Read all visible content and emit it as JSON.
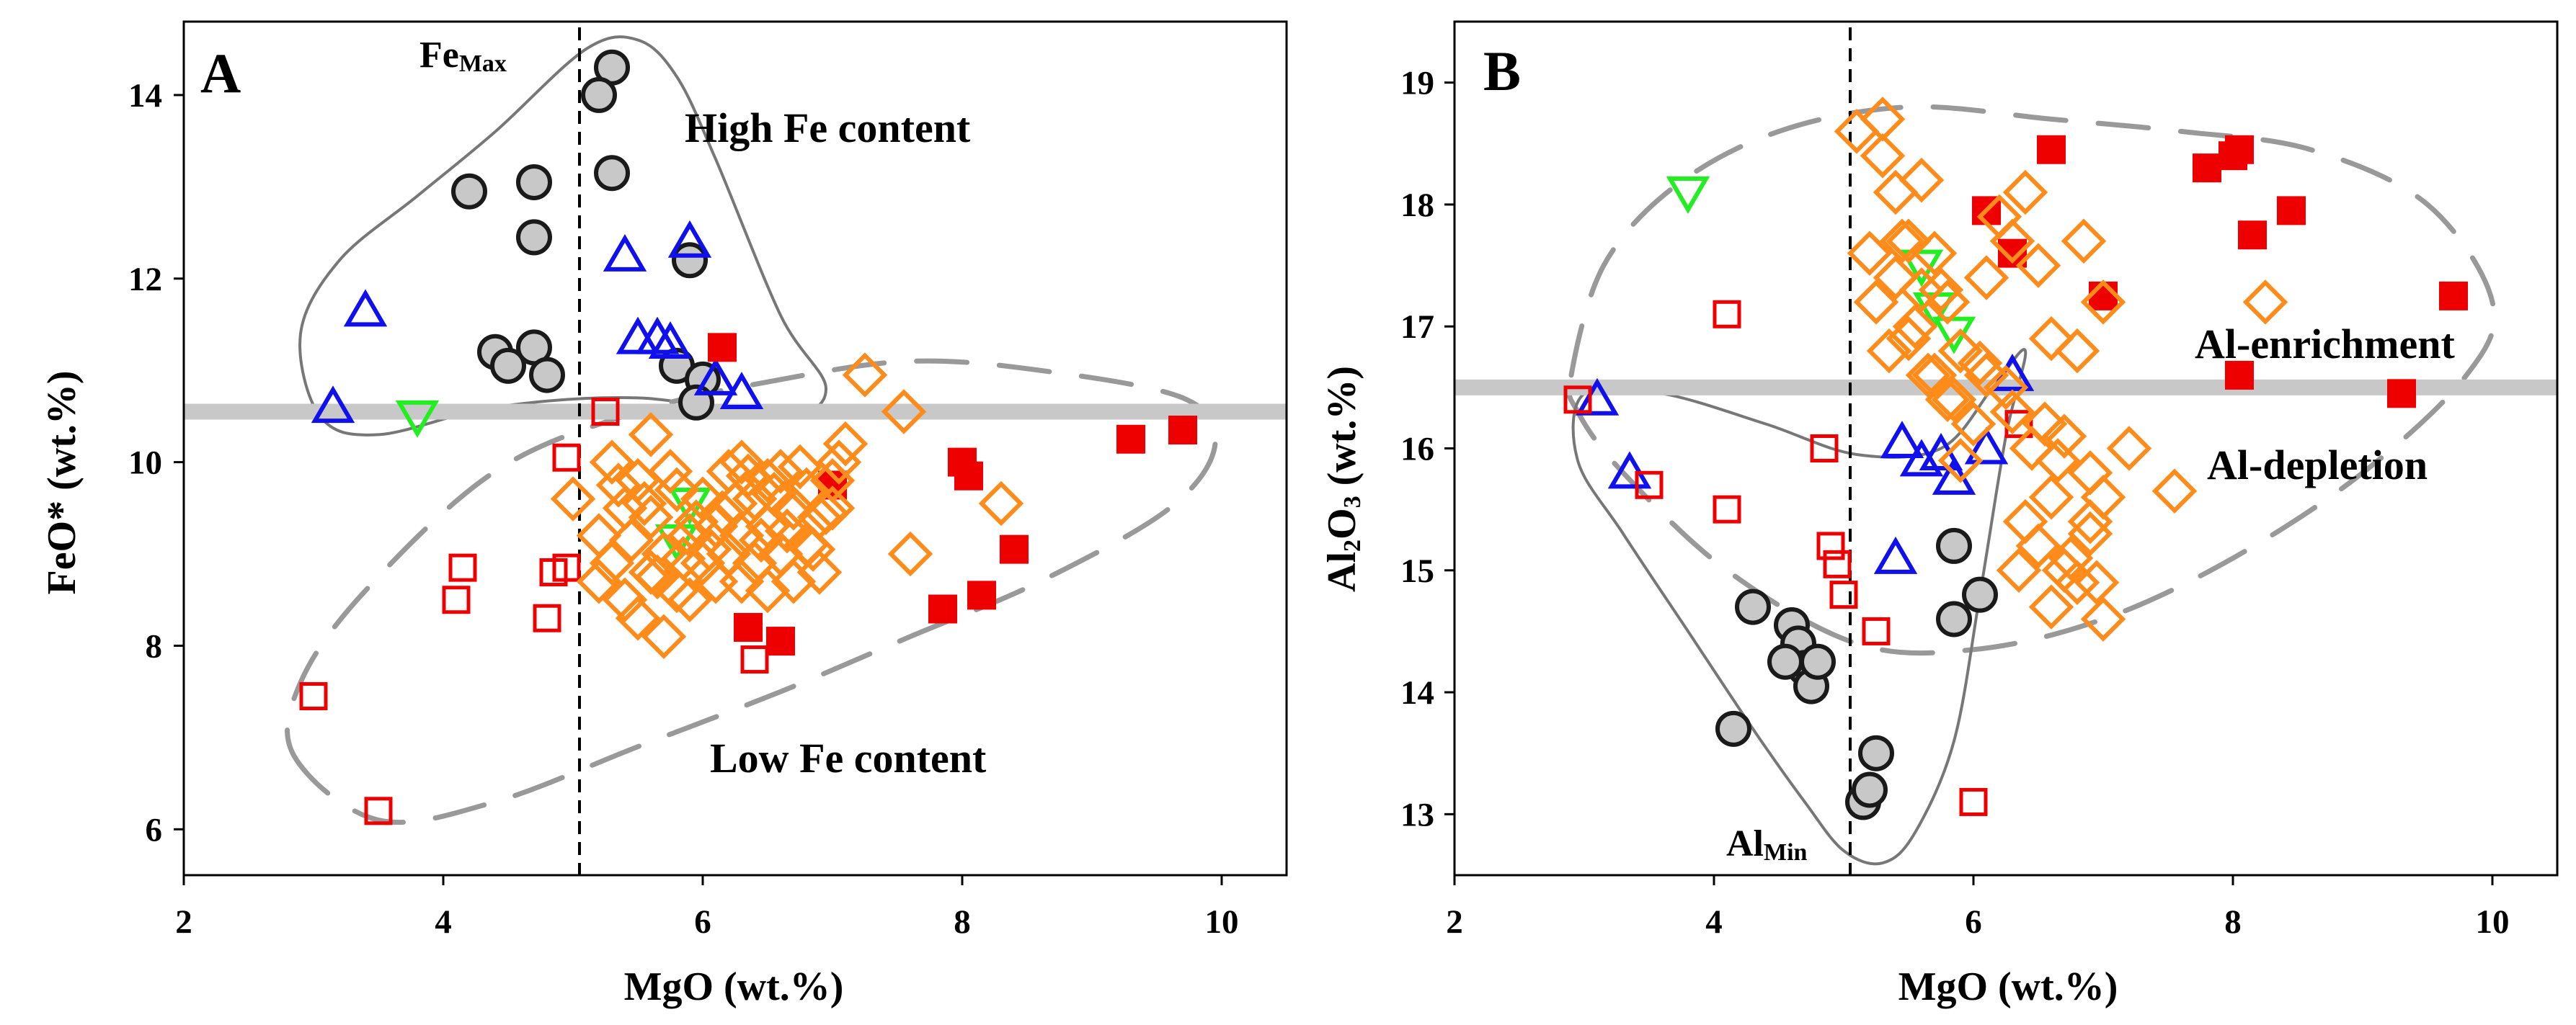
{
  "chart_data": [
    {
      "panel": "A",
      "type": "scatter",
      "xlabel": "MgO (wt.%)",
      "ylabel": "FeO* (wt.%)",
      "xlim": [
        2,
        10.5
      ],
      "ylim": [
        5.5,
        14.8
      ],
      "xticks": [
        2,
        4,
        6,
        8,
        10
      ],
      "yticks": [
        6,
        8,
        10,
        12,
        14
      ],
      "reference_x": 5.05,
      "reference_y": 10.55,
      "marker_label": {
        "main": "Fe",
        "sub": "Max"
      },
      "annotations": [
        "High Fe content",
        "Low Fe content"
      ],
      "regions": [
        {
          "name": "high-fe-solid-field",
          "style": "solid",
          "points": [
            [
              3.05,
              10.5
            ],
            [
              2.9,
              11.4
            ],
            [
              3.2,
              12.2
            ],
            [
              3.8,
              12.9
            ],
            [
              4.4,
              13.6
            ],
            [
              5.1,
              14.5
            ],
            [
              5.5,
              14.6
            ],
            [
              5.8,
              14.2
            ],
            [
              6.1,
              13.3
            ],
            [
              6.6,
              11.6
            ],
            [
              6.95,
              10.8
            ],
            [
              6.6,
              10.5
            ],
            [
              5.5,
              10.7
            ],
            [
              4.4,
              10.6
            ],
            [
              3.5,
              10.3
            ]
          ]
        },
        {
          "name": "low-fe-dashed-field",
          "style": "dashed",
          "points": [
            [
              2.85,
              6.8
            ],
            [
              3.5,
              6.1
            ],
            [
              4.4,
              6.3
            ],
            [
              5.5,
              6.9
            ],
            [
              6.6,
              7.5
            ],
            [
              7.6,
              8.1
            ],
            [
              8.6,
              8.7
            ],
            [
              9.6,
              9.5
            ],
            [
              9.95,
              10.2
            ],
            [
              9.7,
              10.7
            ],
            [
              8.6,
              11.0
            ],
            [
              7.6,
              11.1
            ],
            [
              6.6,
              10.9
            ],
            [
              5.5,
              10.55
            ],
            [
              4.4,
              9.9
            ],
            [
              3.4,
              8.6
            ],
            [
              2.9,
              7.6
            ]
          ]
        }
      ],
      "series": [
        {
          "name": "gray circles",
          "marker": "circle",
          "x": [
            4.2,
            4.7,
            4.7,
            4.4,
            4.5,
            4.7,
            4.8,
            5.3,
            5.2,
            5.3,
            5.9,
            5.8,
            6.0,
            5.95
          ],
          "y": [
            12.95,
            13.05,
            12.45,
            11.2,
            11.05,
            11.25,
            10.95,
            14.3,
            14.0,
            13.15,
            12.2,
            11.05,
            10.9,
            10.65
          ]
        },
        {
          "name": "blue triangles",
          "marker": "triangle-up",
          "x": [
            3.15,
            3.4,
            5.4,
            5.5,
            5.65,
            5.75,
            5.9,
            6.1,
            6.3
          ],
          "y": [
            10.6,
            11.65,
            12.25,
            11.35,
            11.35,
            11.3,
            12.4,
            10.9,
            10.75
          ]
        },
        {
          "name": "green inverted triangles",
          "marker": "triangle-down",
          "x": [
            3.8,
            5.8,
            5.9
          ],
          "y": [
            10.5,
            9.15,
            9.55
          ]
        },
        {
          "name": "red filled squares",
          "marker": "square-filled",
          "x": [
            6.15,
            7.0,
            8.0,
            8.05,
            7.85,
            8.15,
            8.4,
            6.35,
            6.6,
            9.3,
            9.7
          ],
          "y": [
            11.25,
            9.75,
            10.0,
            9.85,
            8.4,
            8.55,
            9.05,
            8.2,
            8.05,
            10.25,
            10.35
          ]
        },
        {
          "name": "red open squares",
          "marker": "square-open",
          "x": [
            3.0,
            3.5,
            4.15,
            4.1,
            4.85,
            4.8,
            4.95,
            5.25,
            6.4,
            4.95
          ],
          "y": [
            7.45,
            6.2,
            8.85,
            8.5,
            8.8,
            8.3,
            8.85,
            10.55,
            7.85,
            10.05
          ]
        },
        {
          "name": "orange diamonds",
          "marker": "diamond",
          "x": [
            5.0,
            5.2,
            5.2,
            5.3,
            5.3,
            5.4,
            5.4,
            5.5,
            5.5,
            5.6,
            5.6,
            5.6,
            5.7,
            5.7,
            5.8,
            5.8,
            5.9,
            5.9,
            6.0,
            6.0,
            6.1,
            6.1,
            6.2,
            6.2,
            6.3,
            6.3,
            6.3,
            6.4,
            6.4,
            6.5,
            6.5,
            6.5,
            6.6,
            6.6,
            6.7,
            6.7,
            6.8,
            6.8,
            6.9,
            6.9,
            7.0,
            7.0,
            7.1,
            5.35,
            5.45,
            5.55,
            5.65,
            5.75,
            5.85,
            5.95,
            6.05,
            6.15,
            6.25,
            6.35,
            6.45,
            6.55,
            6.65,
            6.75,
            6.85,
            6.95,
            7.05,
            7.25,
            7.55,
            8.3,
            7.6
          ],
          "y": [
            9.6,
            9.2,
            8.7,
            10.0,
            8.9,
            9.5,
            8.5,
            9.8,
            8.3,
            10.3,
            8.8,
            9.4,
            9.0,
            8.1,
            9.7,
            8.6,
            9.2,
            8.5,
            9.6,
            8.9,
            9.3,
            8.7,
            9.9,
            9.0,
            10.0,
            9.2,
            8.7,
            9.6,
            8.9,
            9.8,
            9.3,
            8.6,
            9.9,
            9.0,
            9.5,
            8.7,
            9.7,
            9.1,
            9.4,
            8.8,
            9.8,
            9.5,
            10.2,
            9.75,
            9.15,
            9.55,
            8.75,
            9.9,
            8.95,
            9.35,
            9.05,
            9.45,
            9.55,
            9.85,
            9.15,
            9.65,
            9.25,
            9.95,
            9.05,
            9.45,
            10.0,
            10.95,
            10.55,
            9.55,
            9.0
          ]
        }
      ]
    },
    {
      "panel": "B",
      "type": "scatter",
      "xlabel": "MgO (wt.%)",
      "ylabel": "Al2O3 (wt.%)",
      "xlim": [
        2,
        10.5
      ],
      "ylim": [
        12.5,
        19.5
      ],
      "xticks": [
        2,
        4,
        6,
        8,
        10
      ],
      "yticks": [
        13,
        14,
        15,
        16,
        17,
        18,
        19
      ],
      "reference_x": 5.05,
      "reference_y": 16.5,
      "marker_label": {
        "main": "Al",
        "sub": "Min"
      },
      "annotations": [
        "Al-enrichment",
        "Al-depletion"
      ],
      "regions": [
        {
          "name": "al-rich-dashed-field",
          "style": "dashed",
          "points": [
            [
              2.9,
              16.6
            ],
            [
              3.15,
              17.5
            ],
            [
              3.7,
              18.15
            ],
            [
              4.5,
              18.6
            ],
            [
              5.5,
              18.8
            ],
            [
              6.6,
              18.7
            ],
            [
              7.6,
              18.6
            ],
            [
              8.6,
              18.45
            ],
            [
              9.5,
              18.0
            ],
            [
              10.0,
              17.2
            ],
            [
              9.8,
              16.6
            ],
            [
              9.0,
              15.8
            ],
            [
              8.0,
              15.1
            ],
            [
              7.0,
              14.6
            ],
            [
              6.0,
              14.35
            ],
            [
              5.1,
              14.4
            ],
            [
              4.1,
              15.0
            ],
            [
              3.3,
              15.8
            ],
            [
              2.95,
              16.3
            ]
          ]
        },
        {
          "name": "al-min-solid-field",
          "style": "solid",
          "points": [
            [
              3.0,
              16.45
            ],
            [
              2.95,
              15.9
            ],
            [
              3.3,
              15.3
            ],
            [
              3.8,
              14.5
            ],
            [
              4.3,
              13.7
            ],
            [
              4.7,
              13.1
            ],
            [
              5.0,
              12.7
            ],
            [
              5.3,
              12.6
            ],
            [
              5.55,
              12.85
            ],
            [
              5.85,
              13.6
            ],
            [
              6.05,
              14.8
            ],
            [
              6.25,
              16.1
            ],
            [
              6.4,
              16.8
            ],
            [
              6.15,
              16.5
            ],
            [
              5.75,
              16.0
            ],
            [
              5.1,
              15.95
            ],
            [
              4.4,
              16.2
            ],
            [
              3.6,
              16.45
            ]
          ]
        }
      ],
      "series": [
        {
          "name": "gray circles",
          "marker": "circle",
          "x": [
            4.3,
            4.6,
            4.65,
            4.7,
            4.75,
            4.8,
            4.55,
            4.15,
            5.85,
            5.85,
            6.05,
            5.25,
            5.15,
            5.2
          ],
          "y": [
            14.7,
            14.55,
            14.4,
            14.2,
            14.05,
            14.25,
            14.25,
            13.7,
            15.2,
            14.6,
            14.8,
            13.5,
            13.1,
            13.2
          ]
        },
        {
          "name": "blue triangles",
          "marker": "triangle-up",
          "x": [
            3.1,
            3.35,
            5.4,
            5.45,
            5.6,
            5.75,
            5.85,
            6.1,
            6.3
          ],
          "y": [
            16.4,
            15.8,
            15.1,
            16.05,
            15.9,
            15.95,
            15.75,
            16.0,
            16.6
          ]
        },
        {
          "name": "green inverted triangles",
          "marker": "triangle-down",
          "x": [
            3.8,
            5.6,
            5.7,
            5.85
          ],
          "y": [
            18.1,
            17.5,
            17.15,
            16.95
          ]
        },
        {
          "name": "red filled squares",
          "marker": "square-filled",
          "x": [
            6.1,
            6.3,
            6.6,
            7.0,
            7.8,
            8.0,
            8.05,
            8.15,
            8.45,
            9.3,
            9.7,
            8.05
          ],
          "y": [
            17.95,
            17.6,
            18.45,
            17.25,
            18.3,
            18.4,
            18.45,
            17.75,
            17.95,
            16.45,
            17.25,
            16.6
          ]
        },
        {
          "name": "red open squares",
          "marker": "square-open",
          "x": [
            2.95,
            3.5,
            4.1,
            4.1,
            4.85,
            4.9,
            4.95,
            5.0,
            5.25,
            6.35,
            6.0
          ],
          "y": [
            16.4,
            15.7,
            17.1,
            15.5,
            16.0,
            15.2,
            15.05,
            14.8,
            14.5,
            16.2,
            13.1
          ]
        },
        {
          "name": "orange diamonds",
          "marker": "diamond",
          "x": [
            5.1,
            5.3,
            5.3,
            5.2,
            5.4,
            5.4,
            5.5,
            5.5,
            5.6,
            5.6,
            5.7,
            5.7,
            5.8,
            5.8,
            5.9,
            5.9,
            6.0,
            6.1,
            6.1,
            6.2,
            6.3,
            6.3,
            6.4,
            6.4,
            6.5,
            6.5,
            6.6,
            6.6,
            6.7,
            6.7,
            6.8,
            6.8,
            6.9,
            6.9,
            7.0,
            7.0,
            7.2,
            5.25,
            5.35,
            5.45,
            5.55,
            5.65,
            5.75,
            6.05,
            6.25,
            6.45,
            6.55,
            6.65,
            6.75,
            6.85,
            6.95,
            7.0,
            7.55,
            8.25,
            6.9,
            6.5,
            5.85,
            6.35,
            6.6
          ],
          "y": [
            18.6,
            18.7,
            18.4,
            17.6,
            18.1,
            17.4,
            17.7,
            16.9,
            18.2,
            17.3,
            17.6,
            16.6,
            17.2,
            16.4,
            16.8,
            15.9,
            16.2,
            17.4,
            16.6,
            17.9,
            17.7,
            16.3,
            18.1,
            15.4,
            17.5,
            15.2,
            16.9,
            15.6,
            16.1,
            15.0,
            16.8,
            14.9,
            15.3,
            15.8,
            15.6,
            14.6,
            16.0,
            17.2,
            16.8,
            17.7,
            17.0,
            16.6,
            17.3,
            16.7,
            16.5,
            16.0,
            16.2,
            15.9,
            15.1,
            17.7,
            14.9,
            17.2,
            15.65,
            17.2,
            15.4,
            15.2,
            16.4,
            15.0,
            14.7
          ]
        }
      ]
    }
  ]
}
